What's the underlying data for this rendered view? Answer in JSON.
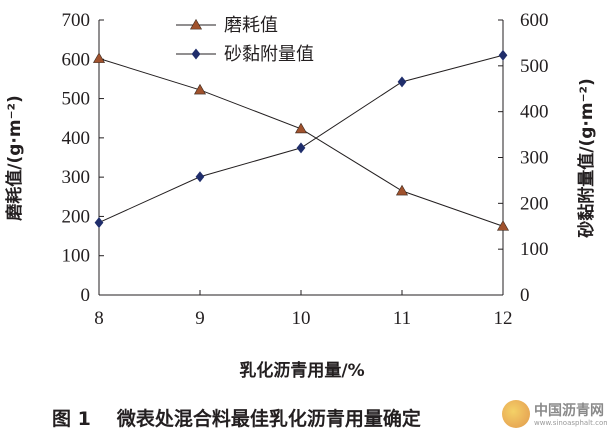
{
  "chart_data": {
    "type": "line",
    "x": [
      8,
      9,
      10,
      11,
      12
    ],
    "xlabel": "乳化沥青用量/%",
    "xticks": [
      "8",
      "9",
      "10",
      "11",
      "12"
    ],
    "y_left": {
      "label": "磨耗值/(g·m⁻²)",
      "ylim": [
        0,
        700
      ],
      "ticks": [
        "0",
        "100",
        "200",
        "300",
        "400",
        "500",
        "600",
        "700"
      ]
    },
    "y_right": {
      "label": "砂黏附量值/(g·m⁻²)",
      "ylim": [
        0,
        600
      ],
      "ticks": [
        "0",
        "100",
        "200",
        "300",
        "400",
        "500",
        "600"
      ]
    },
    "series": [
      {
        "name": "磨耗值",
        "axis": "left",
        "marker": "triangle",
        "color": "#a0522d",
        "values": [
          602,
          522,
          423,
          265,
          175
        ]
      },
      {
        "name": "砂黏附量值",
        "axis": "right",
        "marker": "diamond",
        "color": "#1f2d6b",
        "values": [
          158,
          258,
          321,
          465,
          523
        ]
      }
    ],
    "legend_position": "top-center",
    "grid": false
  },
  "caption": {
    "figure_number": "图 1",
    "text": "微表处混合料最佳乳化沥青用量确定"
  },
  "watermark": {
    "name": "中国沥青网",
    "url": "www.sinoasphalt.com"
  },
  "colors": {
    "axis": "#231f20",
    "line": "#231f20"
  }
}
